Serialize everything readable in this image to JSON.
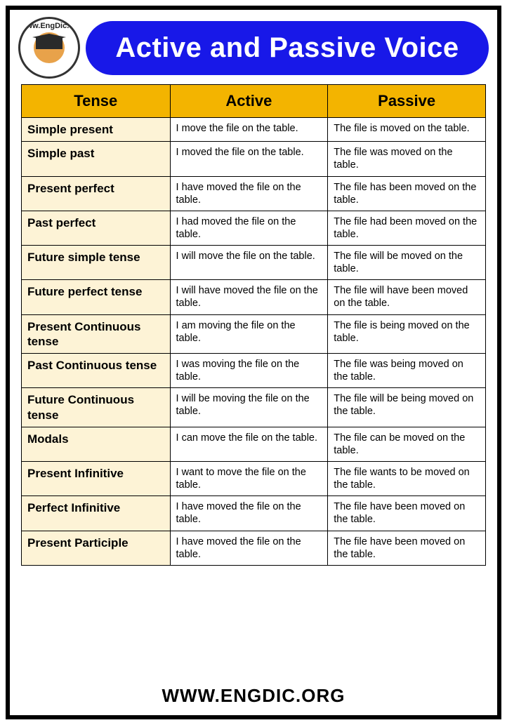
{
  "header": {
    "title": "Active and Passive Voice",
    "logo_ring_text": "www.EngDic.org",
    "title_bg": "#1818e8",
    "title_color": "#ffffff"
  },
  "table": {
    "header_bg": "#f3b400",
    "tense_col_bg": "#fdf3d6",
    "cell_bg": "#ffffff",
    "border_color": "#000000",
    "columns": [
      "Tense",
      "Active",
      "Passive"
    ],
    "col_widths": [
      "32%",
      "34%",
      "34%"
    ],
    "rows": [
      {
        "tense": "Simple present",
        "active": "I move the file on the table.",
        "passive": "The file is moved on the table."
      },
      {
        "tense": "Simple past",
        "active": "I moved the file on the table.",
        "passive": "The file was moved on the table."
      },
      {
        "tense": "Present perfect",
        "active": "I have moved the file on the table.",
        "passive": "The file has been moved on the table."
      },
      {
        "tense": "Past perfect",
        "active": "I had moved the file on the table.",
        "passive": "The file had been moved on the table."
      },
      {
        "tense": "Future simple tense",
        "active": "I will move the file on the table.",
        "passive": "The file will be moved on the table."
      },
      {
        "tense": "Future perfect tense",
        "active": "I will have moved the file on the table.",
        "passive": "The file will have been moved on the table."
      },
      {
        "tense": "Present Continuous tense",
        "active": "I am moving the file on the table.",
        "passive": "The file is being moved on the table."
      },
      {
        "tense": "Past Continuous tense",
        "active": "I was moving the file on the table.",
        "passive": "The file was being moved on the table."
      },
      {
        "tense": "Future Continuous tense",
        "active": "I will be moving the file on the table.",
        "passive": "The file will be being moved on the table."
      },
      {
        "tense": "Modals",
        "active": "I can move the file on the table.",
        "passive": "The file can be moved on the table."
      },
      {
        "tense": "Present Infinitive",
        "active": "I want to move the file on the table.",
        "passive": "The file wants to be moved on the table."
      },
      {
        "tense": "Perfect Infinitive",
        "active": "I have moved the file on the table.",
        "passive": "The file have been moved on the table."
      },
      {
        "tense": "Present Participle",
        "active": "I have moved the file on the table.",
        "passive": "The file have been moved on the table."
      }
    ]
  },
  "footer": {
    "text": "WWW.ENGDIC.ORG"
  },
  "colors": {
    "page_border": "#000000",
    "background": "#ffffff"
  }
}
